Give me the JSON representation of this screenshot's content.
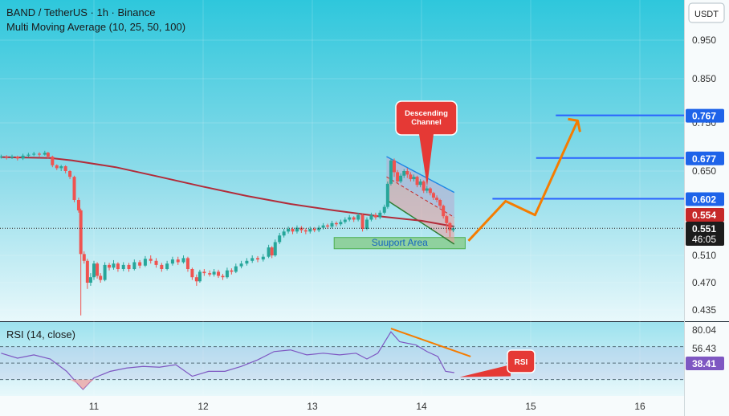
{
  "header": {
    "symbol_line": "BAND / TetherUS · 1h · Binance",
    "indicator_line": "Multi Moving Average (10, 25, 50, 100)",
    "currency_button": "USDT"
  },
  "colors": {
    "background_top": "#26c6da",
    "background_bottom": "#e6f7fb",
    "candle_up": "#26a69a",
    "candle_down": "#ef5350",
    "ma_line": "#b22c3a",
    "level_line": "#2962ff",
    "arrow": "#f57c00",
    "callout": "#e53935",
    "support_box": "#4caf50",
    "rsi_line": "#7e57c2"
  },
  "chart_data": {
    "type": "candlestick",
    "symbol": "BAND / TetherUS",
    "interval": "1h",
    "exchange": "Binance",
    "x_ticks": [
      "11",
      "12",
      "13",
      "14",
      "15",
      "16"
    ],
    "x_range_days": [
      10.15,
      16.4
    ],
    "y_ticks": [
      0.95,
      0.85,
      0.75,
      0.65,
      0.55,
      0.51,
      0.47,
      0.435
    ],
    "y_range": [
      0.42,
      1.0
    ],
    "price_labels": {
      "current": "0.551",
      "countdown": "46:05",
      "ma": "0.554",
      "levels": [
        "0.602",
        "0.677",
        "0.767"
      ]
    },
    "levels": [
      {
        "label": "0.602",
        "value": 0.602,
        "x_start": 14.65
      },
      {
        "label": "0.677",
        "value": 0.677,
        "x_start": 15.05
      },
      {
        "label": "0.767",
        "value": 0.767,
        "x_start": 15.23
      }
    ],
    "ma_line": [
      [
        10.15,
        0.679
      ],
      [
        10.6,
        0.677
      ],
      [
        10.8,
        0.672
      ],
      [
        11.2,
        0.658
      ],
      [
        11.6,
        0.64
      ],
      [
        12.0,
        0.623
      ],
      [
        12.4,
        0.607
      ],
      [
        12.8,
        0.593
      ],
      [
        13.2,
        0.582
      ],
      [
        13.6,
        0.572
      ],
      [
        14.0,
        0.564
      ],
      [
        14.3,
        0.554
      ]
    ],
    "candles": [
      [
        10.15,
        0.68,
        0.68,
        0.676,
        0.684
      ],
      [
        10.2,
        0.68,
        0.678,
        0.674,
        0.683
      ],
      [
        10.25,
        0.678,
        0.68,
        0.675,
        0.684
      ],
      [
        10.3,
        0.68,
        0.676,
        0.672,
        0.682
      ],
      [
        10.35,
        0.676,
        0.682,
        0.673,
        0.686
      ],
      [
        10.4,
        0.682,
        0.684,
        0.679,
        0.688
      ],
      [
        10.45,
        0.684,
        0.686,
        0.681,
        0.69
      ],
      [
        10.5,
        0.686,
        0.684,
        0.68,
        0.689
      ],
      [
        10.55,
        0.684,
        0.688,
        0.682,
        0.692
      ],
      [
        10.58,
        0.688,
        0.68,
        0.676,
        0.69
      ],
      [
        10.62,
        0.68,
        0.662,
        0.658,
        0.682
      ],
      [
        10.66,
        0.662,
        0.656,
        0.652,
        0.664
      ],
      [
        10.7,
        0.656,
        0.66,
        0.65,
        0.663
      ],
      [
        10.74,
        0.66,
        0.65,
        0.646,
        0.662
      ],
      [
        10.78,
        0.65,
        0.64,
        0.636,
        0.652
      ],
      [
        10.82,
        0.64,
        0.6,
        0.596,
        0.642
      ],
      [
        10.86,
        0.6,
        0.582,
        0.578,
        0.604
      ],
      [
        10.88,
        0.582,
        0.512,
        0.428,
        0.585
      ],
      [
        10.91,
        0.512,
        0.502,
        0.498,
        0.516
      ],
      [
        10.94,
        0.502,
        0.47,
        0.462,
        0.505
      ],
      [
        10.97,
        0.47,
        0.478,
        0.466,
        0.484
      ],
      [
        11.0,
        0.478,
        0.498,
        0.474,
        0.502
      ],
      [
        11.03,
        0.498,
        0.48,
        0.476,
        0.5
      ],
      [
        11.06,
        0.48,
        0.474,
        0.47,
        0.484
      ],
      [
        11.1,
        0.474,
        0.496,
        0.472,
        0.5
      ],
      [
        11.14,
        0.496,
        0.492,
        0.488,
        0.499
      ],
      [
        11.18,
        0.492,
        0.498,
        0.489,
        0.503
      ],
      [
        11.22,
        0.498,
        0.49,
        0.486,
        0.5
      ],
      [
        11.27,
        0.49,
        0.496,
        0.487,
        0.5
      ],
      [
        11.32,
        0.496,
        0.49,
        0.486,
        0.499
      ],
      [
        11.37,
        0.49,
        0.5,
        0.488,
        0.504
      ],
      [
        11.42,
        0.5,
        0.495,
        0.491,
        0.503
      ],
      [
        11.47,
        0.495,
        0.505,
        0.493,
        0.509
      ],
      [
        11.52,
        0.505,
        0.502,
        0.498,
        0.51
      ],
      [
        11.57,
        0.502,
        0.496,
        0.492,
        0.506
      ],
      [
        11.62,
        0.496,
        0.49,
        0.486,
        0.499
      ],
      [
        11.67,
        0.49,
        0.498,
        0.488,
        0.502
      ],
      [
        11.72,
        0.498,
        0.504,
        0.495,
        0.508
      ],
      [
        11.77,
        0.504,
        0.5,
        0.496,
        0.508
      ],
      [
        11.82,
        0.5,
        0.506,
        0.498,
        0.51
      ],
      [
        11.86,
        0.506,
        0.49,
        0.486,
        0.508
      ],
      [
        11.9,
        0.49,
        0.478,
        0.474,
        0.492
      ],
      [
        11.94,
        0.478,
        0.472,
        0.466,
        0.482
      ],
      [
        11.97,
        0.472,
        0.486,
        0.47,
        0.489
      ],
      [
        12.01,
        0.486,
        0.484,
        0.48,
        0.49
      ],
      [
        12.06,
        0.484,
        0.482,
        0.479,
        0.488
      ],
      [
        12.1,
        0.482,
        0.486,
        0.479,
        0.49
      ],
      [
        12.14,
        0.486,
        0.48,
        0.477,
        0.489
      ],
      [
        12.18,
        0.48,
        0.478,
        0.474,
        0.483
      ],
      [
        12.22,
        0.478,
        0.488,
        0.476,
        0.492
      ],
      [
        12.26,
        0.488,
        0.486,
        0.482,
        0.491
      ],
      [
        12.3,
        0.486,
        0.494,
        0.484,
        0.498
      ],
      [
        12.35,
        0.494,
        0.498,
        0.491,
        0.502
      ],
      [
        12.4,
        0.498,
        0.502,
        0.495,
        0.506
      ],
      [
        12.45,
        0.502,
        0.506,
        0.499,
        0.51
      ],
      [
        12.5,
        0.506,
        0.504,
        0.5,
        0.509
      ],
      [
        12.55,
        0.504,
        0.508,
        0.501,
        0.512
      ],
      [
        12.6,
        0.508,
        0.522,
        0.506,
        0.526
      ],
      [
        12.63,
        0.522,
        0.51,
        0.506,
        0.524
      ],
      [
        12.66,
        0.51,
        0.53,
        0.508,
        0.534
      ],
      [
        12.7,
        0.53,
        0.54,
        0.527,
        0.544
      ],
      [
        12.74,
        0.54,
        0.546,
        0.537,
        0.55
      ],
      [
        12.78,
        0.546,
        0.55,
        0.543,
        0.554
      ],
      [
        12.82,
        0.55,
        0.546,
        0.542,
        0.553
      ],
      [
        12.86,
        0.546,
        0.552,
        0.543,
        0.556
      ],
      [
        12.9,
        0.552,
        0.548,
        0.544,
        0.555
      ],
      [
        12.94,
        0.548,
        0.546,
        0.542,
        0.551
      ],
      [
        12.98,
        0.546,
        0.55,
        0.543,
        0.554
      ],
      [
        13.02,
        0.55,
        0.548,
        0.545,
        0.553
      ],
      [
        13.06,
        0.548,
        0.552,
        0.545,
        0.556
      ],
      [
        13.1,
        0.552,
        0.556,
        0.549,
        0.56
      ],
      [
        13.14,
        0.556,
        0.554,
        0.55,
        0.559
      ],
      [
        13.18,
        0.554,
        0.56,
        0.551,
        0.564
      ],
      [
        13.22,
        0.56,
        0.558,
        0.554,
        0.563
      ],
      [
        13.26,
        0.558,
        0.562,
        0.555,
        0.566
      ],
      [
        13.3,
        0.562,
        0.566,
        0.559,
        0.57
      ],
      [
        13.34,
        0.566,
        0.57,
        0.563,
        0.574
      ],
      [
        13.38,
        0.57,
        0.566,
        0.562,
        0.572
      ],
      [
        13.42,
        0.566,
        0.574,
        0.563,
        0.578
      ],
      [
        13.46,
        0.574,
        0.55,
        0.546,
        0.576
      ],
      [
        13.5,
        0.55,
        0.566,
        0.548,
        0.57
      ],
      [
        13.54,
        0.566,
        0.574,
        0.563,
        0.578
      ],
      [
        13.58,
        0.574,
        0.57,
        0.566,
        0.578
      ],
      [
        13.62,
        0.57,
        0.578,
        0.567,
        0.582
      ],
      [
        13.66,
        0.578,
        0.588,
        0.575,
        0.592
      ],
      [
        13.69,
        0.588,
        0.628,
        0.585,
        0.632
      ],
      [
        13.72,
        0.628,
        0.672,
        0.625,
        0.676
      ],
      [
        13.75,
        0.672,
        0.648,
        0.64,
        0.676
      ],
      [
        13.78,
        0.648,
        0.632,
        0.628,
        0.652
      ],
      [
        13.81,
        0.632,
        0.642,
        0.629,
        0.646
      ],
      [
        13.84,
        0.642,
        0.65,
        0.638,
        0.654
      ],
      [
        13.87,
        0.65,
        0.644,
        0.638,
        0.656
      ],
      [
        13.9,
        0.644,
        0.636,
        0.632,
        0.648
      ],
      [
        13.93,
        0.636,
        0.64,
        0.632,
        0.644
      ],
      [
        13.96,
        0.64,
        0.626,
        0.622,
        0.642
      ],
      [
        13.99,
        0.626,
        0.632,
        0.622,
        0.636
      ],
      [
        14.02,
        0.632,
        0.616,
        0.612,
        0.634
      ],
      [
        14.05,
        0.616,
        0.62,
        0.612,
        0.624
      ],
      [
        14.08,
        0.62,
        0.612,
        0.608,
        0.622
      ],
      [
        14.11,
        0.612,
        0.604,
        0.6,
        0.614
      ],
      [
        14.14,
        0.604,
        0.6,
        0.596,
        0.608
      ],
      [
        14.17,
        0.6,
        0.59,
        0.586,
        0.602
      ],
      [
        14.2,
        0.59,
        0.572,
        0.568,
        0.592
      ],
      [
        14.23,
        0.572,
        0.56,
        0.544,
        0.574
      ],
      [
        14.26,
        0.56,
        0.548,
        0.538,
        0.562
      ],
      [
        14.29,
        0.548,
        0.551,
        0.545,
        0.556
      ]
    ],
    "rsi": {
      "label": "RSI (14, close)",
      "y_ticks": [
        "80.04",
        "56.43",
        "38.41"
      ],
      "levels": [
        70,
        50,
        30
      ],
      "points": [
        [
          10.15,
          62
        ],
        [
          10.3,
          56
        ],
        [
          10.45,
          60
        ],
        [
          10.6,
          55
        ],
        [
          10.75,
          40
        ],
        [
          10.85,
          25
        ],
        [
          10.9,
          18
        ],
        [
          11.0,
          32
        ],
        [
          11.15,
          40
        ],
        [
          11.3,
          44
        ],
        [
          11.45,
          46
        ],
        [
          11.6,
          45
        ],
        [
          11.75,
          48
        ],
        [
          11.9,
          34
        ],
        [
          12.05,
          40
        ],
        [
          12.2,
          40
        ],
        [
          12.35,
          46
        ],
        [
          12.5,
          54
        ],
        [
          12.65,
          64
        ],
        [
          12.8,
          66
        ],
        [
          12.95,
          60
        ],
        [
          13.1,
          62
        ],
        [
          13.25,
          60
        ],
        [
          13.4,
          62
        ],
        [
          13.5,
          55
        ],
        [
          13.6,
          62
        ],
        [
          13.72,
          88
        ],
        [
          13.8,
          76
        ],
        [
          13.95,
          72
        ],
        [
          14.05,
          64
        ],
        [
          14.15,
          58
        ],
        [
          14.22,
          40
        ],
        [
          14.3,
          38.41
        ]
      ]
    },
    "annotations": {
      "descending_channel": "Descending\nChannel",
      "support_area": "Suuport Area",
      "rsi_callout": "RSI"
    }
  }
}
